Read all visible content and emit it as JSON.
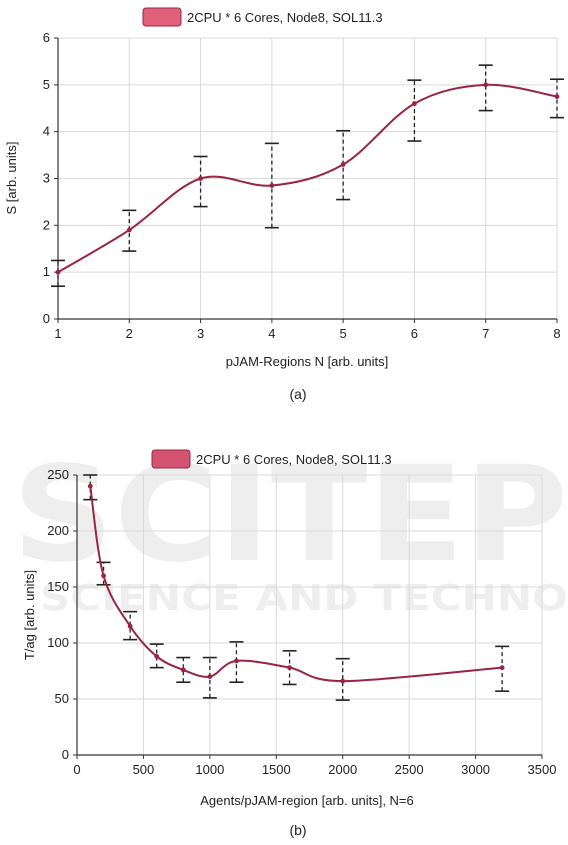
{
  "chart_data": [
    {
      "type": "line",
      "title": "",
      "caption": "(a)",
      "xlabel": "pJAM-Regions N [arb. units]",
      "ylabel": "S [arb. units]",
      "xlim": [
        1,
        8
      ],
      "ylim": [
        0,
        6
      ],
      "xticks": [
        1,
        2,
        3,
        4,
        5,
        6,
        7,
        8
      ],
      "yticks": [
        0,
        1,
        2,
        3,
        4,
        5,
        6
      ],
      "grid": true,
      "legend_position": "top-center",
      "series": [
        {
          "name": "2CPU * 6 Cores, Node8, SOL11.3",
          "color": "#9b2444",
          "legend_fill": "#e0607a",
          "x": [
            1,
            2,
            3,
            4,
            5,
            6,
            7,
            8
          ],
          "y": [
            1.0,
            1.9,
            3.0,
            2.85,
            3.3,
            4.6,
            5.0,
            4.75
          ],
          "err_low": [
            0.7,
            1.45,
            2.4,
            1.95,
            2.55,
            3.8,
            4.45,
            4.3
          ],
          "err_high": [
            1.25,
            2.32,
            3.47,
            3.75,
            4.02,
            5.1,
            5.42,
            5.12
          ]
        }
      ]
    },
    {
      "type": "line",
      "title": "",
      "caption": "(b)",
      "xlabel": "Agents/pJAM-region [arb. units], N=6",
      "ylabel": "T/ag [arb. units]",
      "xlim": [
        0,
        3500
      ],
      "ylim": [
        0,
        250
      ],
      "xticks": [
        0,
        500,
        1000,
        1500,
        2000,
        2500,
        3000,
        3500
      ],
      "yticks": [
        0,
        50,
        100,
        150,
        200,
        250
      ],
      "grid": true,
      "legend_position": "top-center",
      "series": [
        {
          "name": "2CPU * 6 Cores, Node8, SOL11.3",
          "color": "#9b2444",
          "legend_fill": "#d25470",
          "x": [
            100,
            200,
            400,
            600,
            800,
            1000,
            1200,
            1600,
            2000,
            3200
          ],
          "y": [
            240,
            160,
            115,
            88,
            76,
            70,
            84,
            78,
            66,
            78
          ],
          "err_low": [
            228,
            152,
            103,
            78,
            65,
            51,
            65,
            63,
            49,
            57
          ],
          "err_high": [
            250,
            172,
            128,
            99,
            87,
            87,
            101,
            93,
            86,
            97
          ]
        }
      ]
    }
  ],
  "watermark": {
    "big_text": "SCITEP",
    "sub_text": "SCIENCE AND TECHNO"
  }
}
